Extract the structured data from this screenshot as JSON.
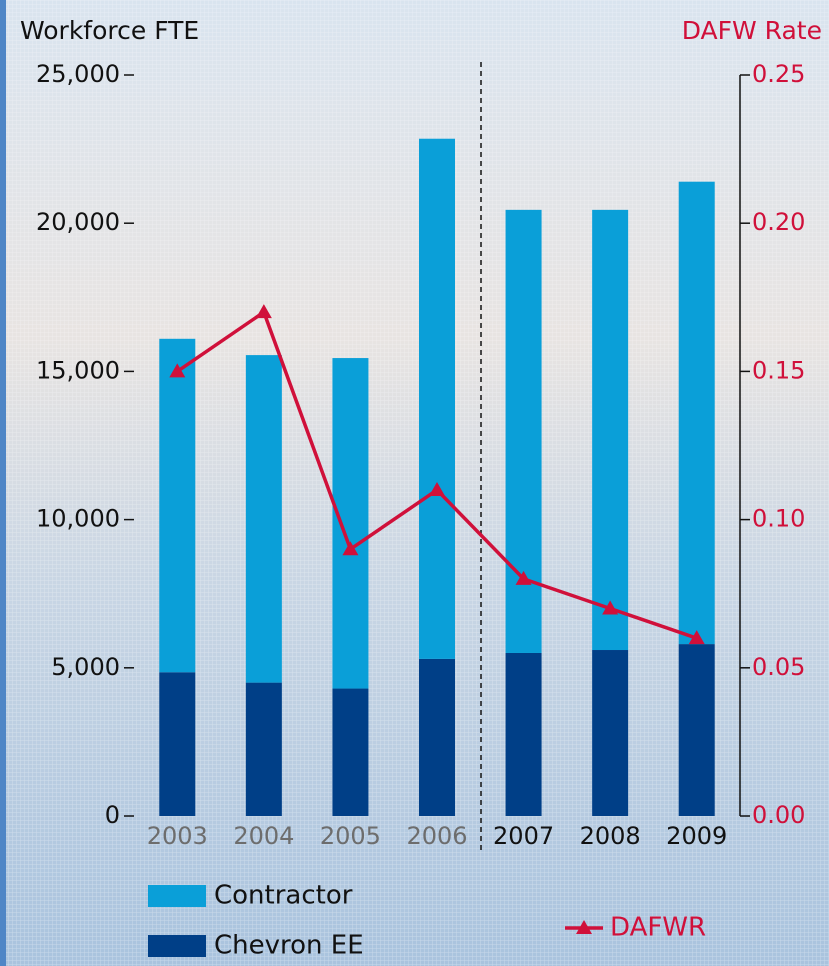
{
  "chart_data": {
    "type": "bar",
    "stacked": true,
    "y_title": "Workforce FTE",
    "y2_title": "DAFW Rate",
    "categories": [
      "2003",
      "2004",
      "2005",
      "2006",
      "2007",
      "2008",
      "2009"
    ],
    "xtick_colors": [
      "#6d6d6d",
      "#6d6d6d",
      "#6d6d6d",
      "#6d6d6d",
      "#111111",
      "#111111",
      "#111111"
    ],
    "series": [
      {
        "name": "Chevron EE",
        "type": "bar",
        "color": "#003f87",
        "values": [
          4850,
          4500,
          4300,
          5300,
          5500,
          5600,
          5800
        ]
      },
      {
        "name": "Contractor",
        "type": "bar",
        "color": "#0a9fd8",
        "values": [
          11250,
          11050,
          11150,
          17550,
          14950,
          14850,
          15600
        ]
      },
      {
        "name": "DAFWR",
        "type": "line",
        "axis": "y2",
        "color": "#d0103a",
        "values": [
          0.15,
          0.17,
          0.09,
          0.11,
          0.08,
          0.07,
          0.06
        ]
      }
    ],
    "ylim": [
      0,
      25000
    ],
    "yticks": [
      0,
      {
        "value": 5000,
        "label": "5,000"
      },
      {
        "value": 10000,
        "label": "10,000"
      },
      {
        "value": 15000,
        "label": "15,000"
      },
      {
        "value": 20000,
        "label": "20,000"
      },
      {
        "value": 25000,
        "label": "25,000"
      }
    ],
    "y2lim": [
      0,
      0.25
    ],
    "y2ticks": [
      {
        "value": 0,
        "label": "0.00"
      },
      0.05,
      {
        "value": 0.1,
        "label": "0.10"
      },
      0.15,
      {
        "value": 0.2,
        "label": "0.20"
      },
      0.25
    ]
  }
}
